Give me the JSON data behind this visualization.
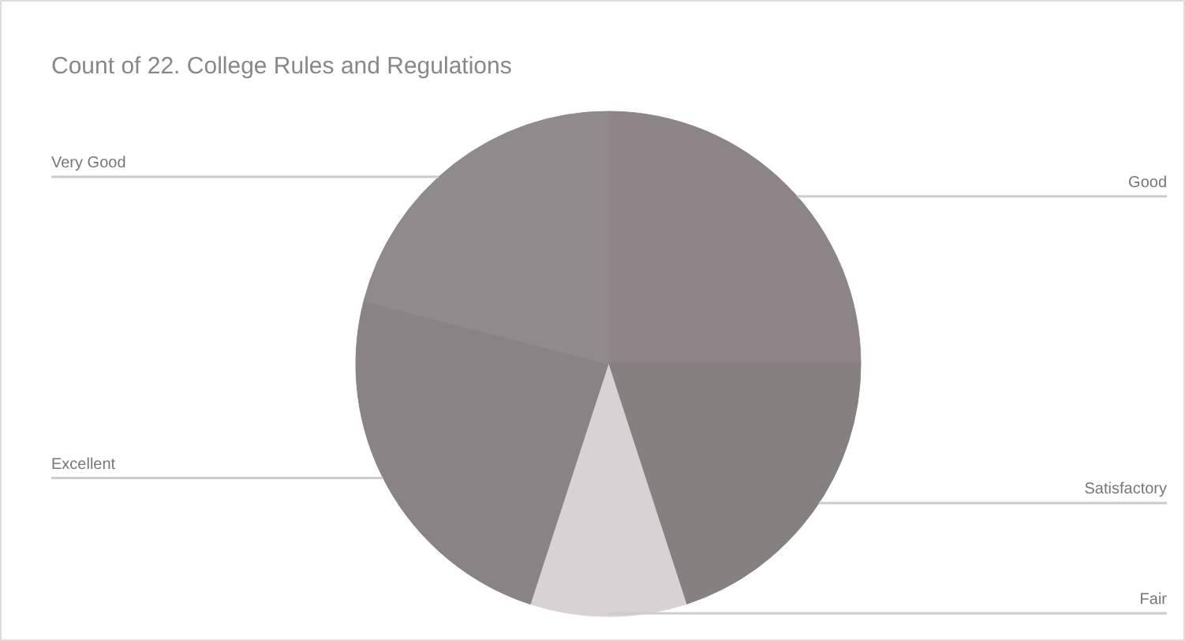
{
  "chart_data": {
    "type": "pie",
    "title": "Count of 22. College Rules and Regulations",
    "categories": [
      "Good",
      "Satisfactory",
      "Fair",
      "Excellent",
      "Very Good"
    ],
    "values": [
      25,
      20,
      10,
      24,
      21
    ],
    "colors": [
      "#8c8486",
      "#878081",
      "#d9d2d4",
      "#8a8385",
      "#918a8c"
    ]
  }
}
